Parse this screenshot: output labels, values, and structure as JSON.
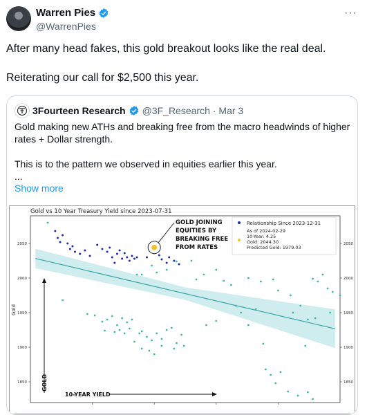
{
  "author": {
    "name": "Warren Pies",
    "handle": "@WarrenPies",
    "more": "···"
  },
  "tweet": {
    "line1": "After many head fakes, this gold breakout looks like the real deal.",
    "line2": "Reiterating our call for $2,500 this year."
  },
  "quoted": {
    "name": "3Fourteen Research",
    "handle": "@3F_Research",
    "date": "· Mar 3",
    "text1": "Gold making new ATHs and breaking free from the macro headwinds of higher rates + Dollar strength.",
    "text2": "This is to the pattern we observed in equities earlier this year.",
    "ellipsis": "...",
    "show_more": "Show more"
  },
  "colors": {
    "accent": "#1d9bf0",
    "old_points": "#3fb8a8",
    "recent_points": "#1a2db0",
    "highlight": "#f2c12e",
    "band": "#bfe6e8",
    "line": "#36a3a6"
  },
  "chart_data": {
    "type": "scatter",
    "title": "Gold vs 10 Year Treasury Yield since 2023-07-31",
    "ylabel": "Gold",
    "xlabel_arrow": "10-YEAR YIELD",
    "ylabel_arrow": "GOLD",
    "annotation": [
      "GOLD JOINING",
      "EQUITIES BY",
      "BREAKING FREE",
      "FROM RATES"
    ],
    "legend": {
      "series_name": "Relationship Since 2023-12-31",
      "as_of": "As of 2024-02-29",
      "ten_year": "10-Year: 4.25",
      "gold": "Gold: 2044.30",
      "predicted": "Predicted Gold: 1979.03"
    },
    "xlim": [
      3.75,
      5.0
    ],
    "ylim": [
      1820,
      2090
    ],
    "yticks": [
      1850,
      1900,
      1950,
      2000,
      2050
    ],
    "yticklabels": [
      "1850",
      "1900",
      "1950",
      "2000",
      "2050"
    ],
    "regression": {
      "x": [
        3.75,
        5.0
      ],
      "y": [
        2030,
        1925
      ]
    },
    "band_halfwidth": [
      14,
      9,
      28
    ],
    "highlight": {
      "x": 4.25,
      "y": 2044.3
    },
    "series": [
      {
        "name": "Since 2023-07-31",
        "points": [
          [
            3.82,
            2080
          ],
          [
            3.88,
            1968
          ],
          [
            3.98,
            1948
          ],
          [
            4.01,
            1946
          ],
          [
            4.04,
            1937
          ],
          [
            4.06,
            1940
          ],
          [
            4.08,
            1945
          ],
          [
            4.1,
            1932
          ],
          [
            4.12,
            1942
          ],
          [
            4.14,
            1936
          ],
          [
            4.16,
            1940
          ],
          [
            4.05,
            1924
          ],
          [
            4.09,
            1922
          ],
          [
            4.11,
            1925
          ],
          [
            4.13,
            1920
          ],
          [
            4.15,
            1927
          ],
          [
            4.17,
            1908
          ],
          [
            4.19,
            1920
          ],
          [
            4.2,
            1923
          ],
          [
            4.22,
            1915
          ],
          [
            4.24,
            1910
          ],
          [
            4.26,
            1920
          ],
          [
            4.28,
            1912
          ],
          [
            4.3,
            1925
          ],
          [
            4.32,
            1928
          ],
          [
            4.34,
            1906
          ],
          [
            4.36,
            1918
          ],
          [
            4.2,
            1898
          ],
          [
            4.23,
            1895
          ],
          [
            4.25,
            1890
          ],
          [
            4.28,
            1902
          ],
          [
            4.33,
            1898
          ],
          [
            4.37,
            1902
          ],
          [
            4.18,
            2005
          ],
          [
            4.2,
            2005
          ],
          [
            4.24,
            2018
          ],
          [
            4.26,
            2008
          ],
          [
            4.3,
            2012
          ],
          [
            4.34,
            2024
          ],
          [
            4.4,
            2025
          ],
          [
            4.42,
            1998
          ],
          [
            4.45,
            2005
          ],
          [
            4.5,
            2012
          ],
          [
            4.53,
            1996
          ],
          [
            4.56,
            1990
          ],
          [
            4.46,
            1932
          ],
          [
            4.5,
            1938
          ],
          [
            4.58,
            1960
          ],
          [
            4.6,
            1950
          ],
          [
            4.63,
            1932
          ],
          [
            4.66,
            1955
          ],
          [
            4.69,
            1905
          ],
          [
            4.7,
            1868
          ],
          [
            4.72,
            1860
          ],
          [
            4.74,
            1848
          ],
          [
            4.76,
            1864
          ],
          [
            4.79,
            1836
          ],
          [
            4.83,
            1830
          ],
          [
            4.87,
            1835
          ],
          [
            4.89,
            1825
          ],
          [
            4.75,
            1982
          ],
          [
            4.8,
            1975
          ],
          [
            4.84,
            1960
          ],
          [
            4.87,
            1940
          ],
          [
            4.89,
            1999
          ],
          [
            4.91,
            1995
          ],
          [
            4.93,
            2005
          ],
          [
            4.95,
            1985
          ],
          [
            4.97,
            1980
          ],
          [
            5.0,
            1975
          ],
          [
            4.63,
            2000
          ],
          [
            4.68,
            1995
          ],
          [
            4.73,
            1998
          ],
          [
            4.81,
            1950
          ],
          [
            4.86,
            1902
          ],
          [
            4.9,
            1942
          ],
          [
            4.96,
            1950
          ]
        ]
      },
      {
        "name": "Since 2023-12-31",
        "points": [
          [
            3.85,
            2068
          ],
          [
            3.86,
            2058
          ],
          [
            3.87,
            2052
          ],
          [
            3.88,
            2062
          ],
          [
            3.9,
            2050
          ],
          [
            3.91,
            2042
          ],
          [
            3.92,
            2046
          ],
          [
            3.93,
            2038
          ],
          [
            3.95,
            2035
          ],
          [
            3.97,
            2040
          ],
          [
            3.99,
            2032
          ],
          [
            4.02,
            2048
          ],
          [
            4.04,
            2042
          ],
          [
            4.06,
            2038
          ],
          [
            4.07,
            2044
          ],
          [
            4.08,
            2030
          ],
          [
            4.1,
            2035
          ],
          [
            4.11,
            2040
          ],
          [
            4.12,
            2028
          ],
          [
            4.13,
            2036
          ],
          [
            4.14,
            2030
          ],
          [
            4.15,
            2025
          ],
          [
            4.16,
            2032
          ],
          [
            4.17,
            2028
          ],
          [
            4.18,
            2030
          ],
          [
            4.22,
            2030
          ],
          [
            4.25,
            2036
          ],
          [
            4.27,
            2033
          ],
          [
            4.28,
            2027
          ],
          [
            4.3,
            2022
          ],
          [
            4.31,
            2030
          ],
          [
            4.33,
            2025
          ],
          [
            4.35,
            2020
          ],
          [
            4.09,
            2022
          ]
        ]
      }
    ]
  }
}
